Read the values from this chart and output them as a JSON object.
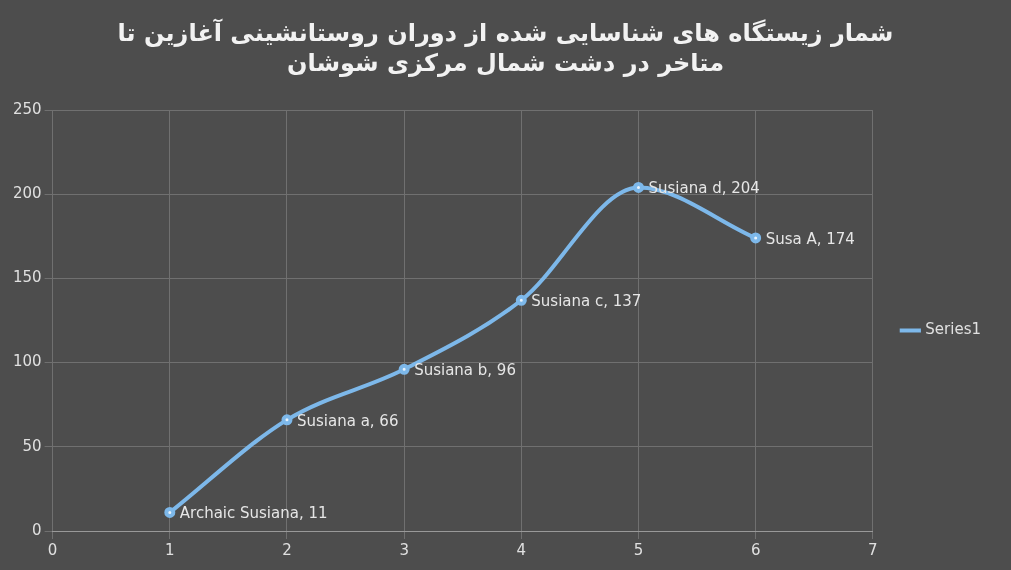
{
  "chart_data": {
    "type": "line",
    "title": "شمار زیستگاه های شناسایی شده از دوران روستانشینی آغازین تا متاخر در دشت شمال مرکزی شوشان",
    "x": [
      1,
      2,
      3,
      4,
      5,
      6
    ],
    "series": [
      {
        "name": "Series1",
        "color": "#7db8ea",
        "values": [
          11,
          66,
          96,
          137,
          204,
          174
        ],
        "value_labels": [
          "Archaic Susiana, 11",
          "Susiana a, 66",
          "Susiana b, 96",
          "Susiana c, 137",
          "Susiana d, 204",
          "Susa A, 174"
        ]
      }
    ],
    "xlim": [
      0,
      7
    ],
    "xticks": [
      0,
      1,
      2,
      3,
      4,
      5,
      6,
      7
    ],
    "ylim": [
      0,
      250
    ],
    "yticks": [
      0,
      50,
      100,
      150,
      200,
      250
    ],
    "grid": true,
    "legend": "right",
    "marker": "circle"
  }
}
